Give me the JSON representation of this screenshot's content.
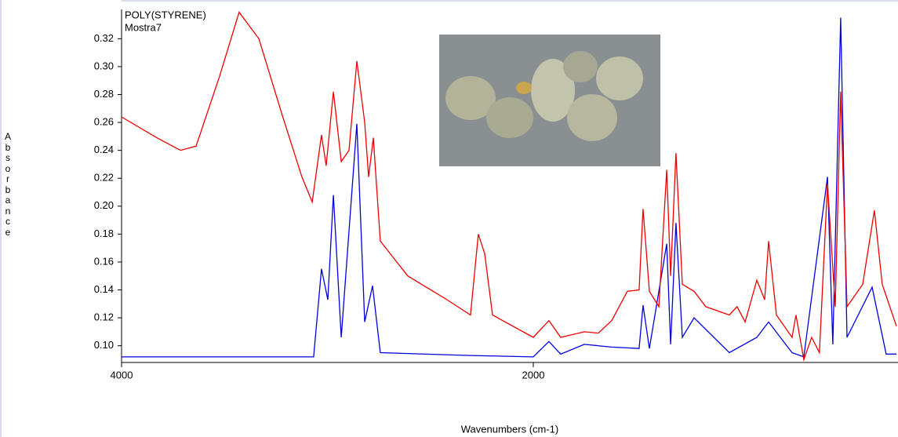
{
  "chart_data": {
    "type": "line",
    "xlabel": "Wavenumbers (cm-1)",
    "ylabel": "Absorbance",
    "xlim": [
      4000,
      236
    ],
    "ylim": [
      0.088,
      0.341
    ],
    "xticks": [
      4000,
      2000
    ],
    "yticks": [
      {
        "value": 0.1,
        "label": "0.10"
      },
      0.12,
      0.14,
      0.16,
      0.18,
      {
        "value": 0.2,
        "label": "0.20"
      },
      0.22,
      0.24,
      0.26,
      0.28,
      {
        "value": 0.3,
        "label": "0.30"
      },
      0.32
    ],
    "series": [
      {
        "name": "POLY(STYRENE)",
        "color": "#0000dd",
        "x": [
          4000,
          3067,
          3029,
          2998,
          2971,
          2933,
          2857,
          2819,
          2781,
          2743,
          2305,
          2000,
          1924,
          1867,
          1752,
          1619,
          1486,
          1467,
          1436,
          1352,
          1333,
          1307,
          1276,
          1219,
          1048,
          914,
          857,
          743,
          686,
          571,
          545,
          507,
          476,
          354,
          286,
          236
        ],
        "values": [
          0.092,
          0.092,
          0.155,
          0.133,
          0.208,
          0.106,
          0.259,
          0.117,
          0.143,
          0.095,
          0.093,
          0.092,
          0.103,
          0.094,
          0.101,
          0.099,
          0.098,
          0.129,
          0.098,
          0.173,
          0.101,
          0.188,
          0.106,
          0.12,
          0.095,
          0.106,
          0.117,
          0.095,
          0.092,
          0.221,
          0.101,
          0.335,
          0.106,
          0.142,
          0.094,
          0.094
        ]
      },
      {
        "name": "Mostra7",
        "color": "#ee0000",
        "x": [
          4000,
          3829,
          3714,
          3638,
          3524,
          3429,
          3333,
          3219,
          3124,
          3074,
          3029,
          3006,
          2971,
          2933,
          2895,
          2857,
          2819,
          2800,
          2777,
          2743,
          2610,
          2419,
          2305,
          2267,
          2236,
          2198,
          2000,
          1924,
          1867,
          1752,
          1684,
          1619,
          1543,
          1486,
          1467,
          1436,
          1390,
          1352,
          1333,
          1307,
          1276,
          1219,
          1162,
          1048,
          1010,
          971,
          914,
          876,
          857,
          819,
          743,
          724,
          686,
          648,
          610,
          571,
          533,
          507,
          476,
          400,
          343,
          305,
          236
        ],
        "values": [
          0.264,
          0.249,
          0.24,
          0.243,
          0.293,
          0.339,
          0.32,
          0.265,
          0.221,
          0.203,
          0.251,
          0.229,
          0.282,
          0.232,
          0.24,
          0.304,
          0.26,
          0.221,
          0.249,
          0.175,
          0.15,
          0.133,
          0.122,
          0.18,
          0.166,
          0.122,
          0.106,
          0.118,
          0.106,
          0.11,
          0.109,
          0.118,
          0.139,
          0.14,
          0.198,
          0.139,
          0.128,
          0.226,
          0.15,
          0.238,
          0.144,
          0.139,
          0.128,
          0.122,
          0.128,
          0.117,
          0.147,
          0.133,
          0.175,
          0.122,
          0.106,
          0.122,
          0.09,
          0.106,
          0.095,
          0.216,
          0.128,
          0.282,
          0.128,
          0.144,
          0.197,
          0.144,
          0.114
        ]
      }
    ]
  }
}
